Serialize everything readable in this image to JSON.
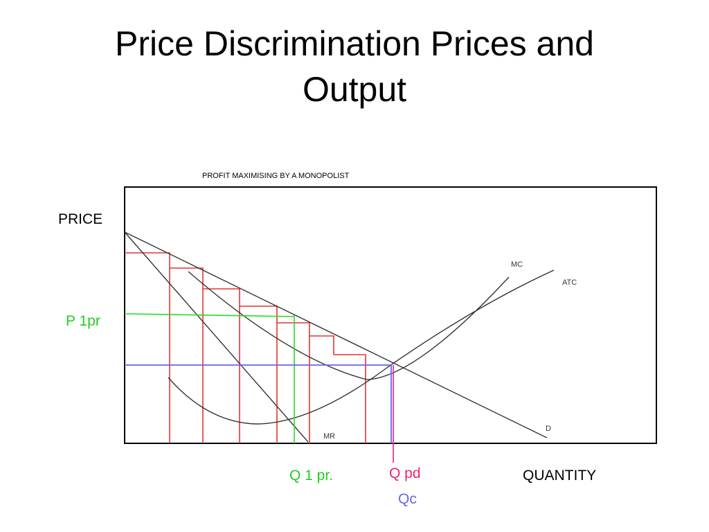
{
  "header": {
    "title": "Price Discrimination Prices and Output"
  },
  "diagram": {
    "subtitle": "PROFIT MAXIMISING BY A MONOPOLIST",
    "y_label": "PRICE",
    "x_label": "QUANTITY",
    "curves": {
      "mc": "MC",
      "atc": "ATC",
      "demand": "D",
      "mr": "MR"
    },
    "markers": {
      "p1": "P 1pr",
      "q1": "Q 1 pr.",
      "qpd": "Q pd",
      "qc": "Qc"
    }
  }
}
